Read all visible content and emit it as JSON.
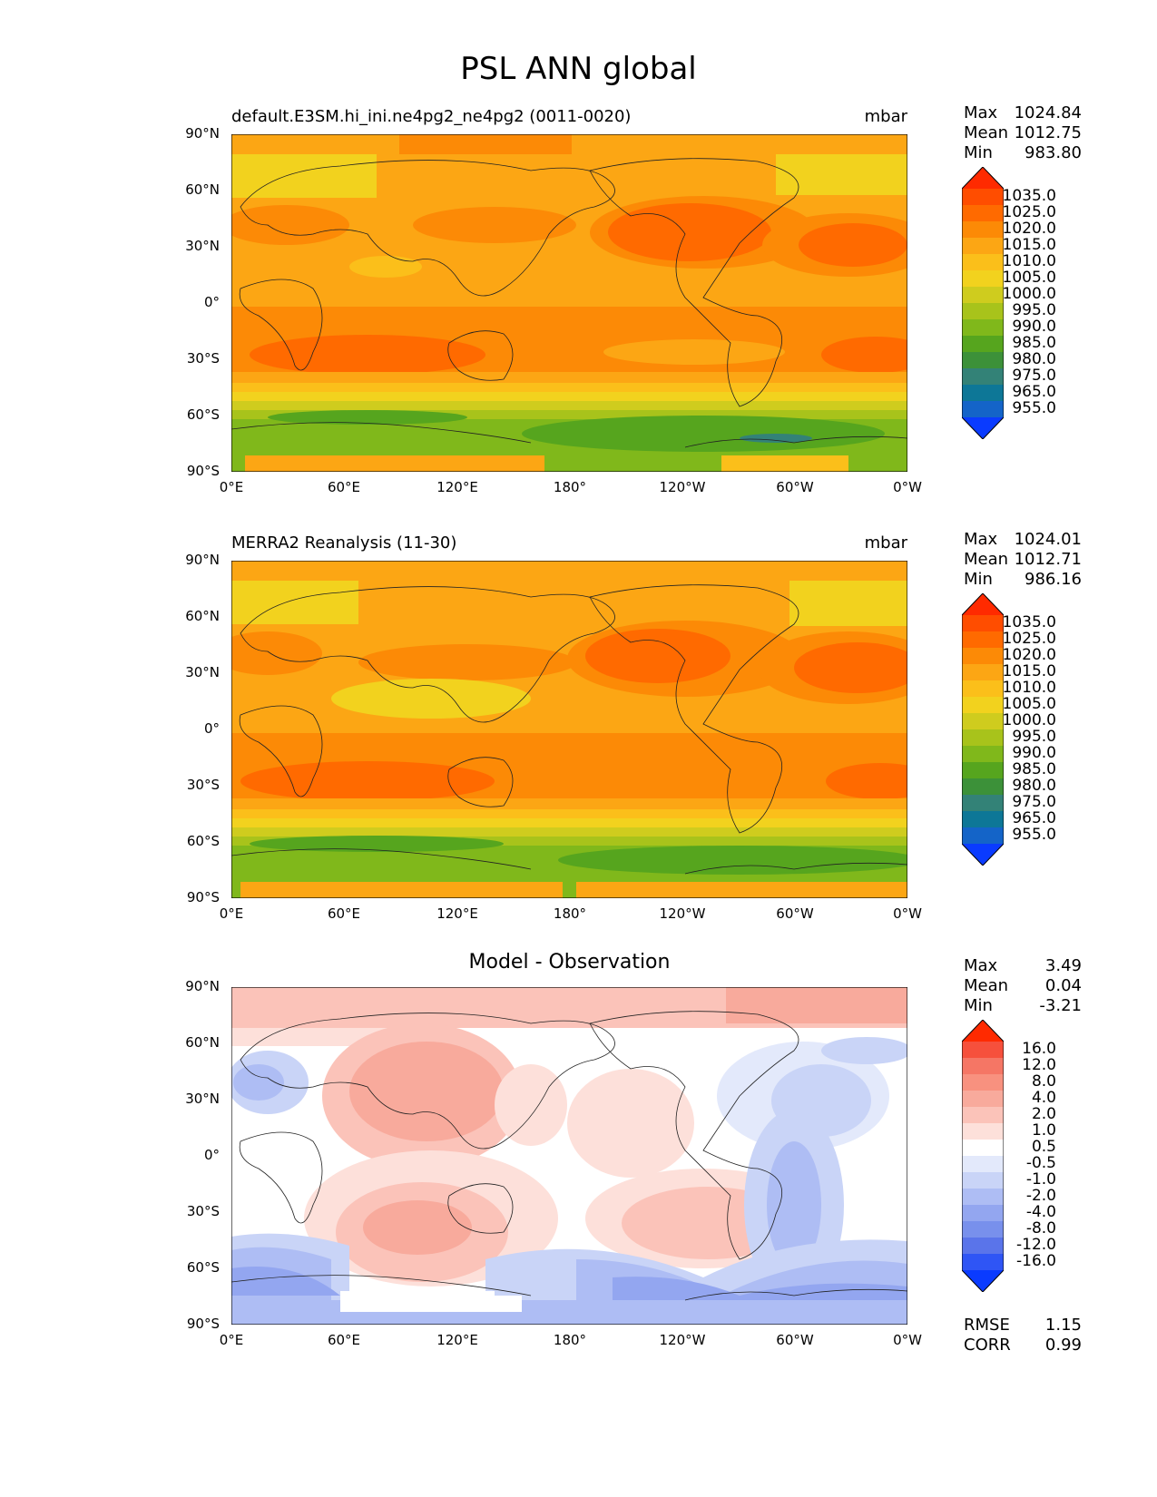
{
  "figure": {
    "title": "PSL ANN global"
  },
  "axes": {
    "lat_ticks": [
      "90°N",
      "60°N",
      "30°N",
      "0°",
      "30°S",
      "60°S",
      "90°S"
    ],
    "lon_ticks": [
      "0°E",
      "60°E",
      "120°E",
      "180°",
      "120°W",
      "60°W",
      "0°W"
    ]
  },
  "panels": [
    {
      "title_left": "default.E3SM.hi_ini.ne4pg2_ne4pg2 (0011-0020)",
      "title_center": "",
      "units": "mbar",
      "stats": {
        "max_label": "Max",
        "max": "1024.84",
        "mean_label": "Mean",
        "mean": "1012.75",
        "min_label": "Min",
        "min": "983.80"
      },
      "colorbar_labels": [
        "1035.0",
        "1025.0",
        "1020.0",
        "1015.0",
        "1010.0",
        "1005.0",
        "1000.0",
        "995.0",
        "990.0",
        "985.0",
        "980.0",
        "975.0",
        "965.0",
        "955.0"
      ]
    },
    {
      "title_left": "MERRA2 Reanalysis (11-30)",
      "title_center": "",
      "units": "mbar",
      "stats": {
        "max_label": "Max",
        "max": "1024.01",
        "mean_label": "Mean",
        "mean": "1012.71",
        "min_label": "Min",
        "min": "986.16"
      },
      "colorbar_labels": [
        "1035.0",
        "1025.0",
        "1020.0",
        "1015.0",
        "1010.0",
        "1005.0",
        "1000.0",
        "995.0",
        "990.0",
        "985.0",
        "980.0",
        "975.0",
        "965.0",
        "955.0"
      ]
    },
    {
      "title_left": "",
      "title_center": "Model - Observation",
      "units": "",
      "stats": {
        "max_label": "Max",
        "max": "3.49",
        "mean_label": "Mean",
        "mean": "0.04",
        "min_label": "Min",
        "min": "-3.21"
      },
      "colorbar_labels": [
        "16.0",
        "12.0",
        "8.0",
        "4.0",
        "2.0",
        "1.0",
        "0.5",
        "-0.5",
        "-1.0",
        "-2.0",
        "-4.0",
        "-8.0",
        "-12.0",
        "-16.0"
      ],
      "rmse_label": "RMSE",
      "rmse": "1.15",
      "corr_label": "CORR",
      "corr": "0.99"
    }
  ],
  "colors": {
    "psl_scale_top_to_bottom": [
      "#ff2a00",
      "#ff4d00",
      "#ff6a00",
      "#fc8a06",
      "#fca614",
      "#fbbf1a",
      "#f2d21e",
      "#cfcc1e",
      "#a8c31b",
      "#80b81b",
      "#56a51e",
      "#3c9139",
      "#338277",
      "#0d7797",
      "#1464c8",
      "#0a3bff"
    ],
    "diff_scale_top_to_bottom": [
      "#ff2a00",
      "#f6503c",
      "#f57665",
      "#f8917f",
      "#f8aa9c",
      "#fbc3b9",
      "#fde0da",
      "#ffffff",
      "#e3e9fb",
      "#c9d4f7",
      "#aebdf4",
      "#93a6f0",
      "#7890ec",
      "#5a74ea",
      "#2f55f5",
      "#0a3bff"
    ]
  }
}
